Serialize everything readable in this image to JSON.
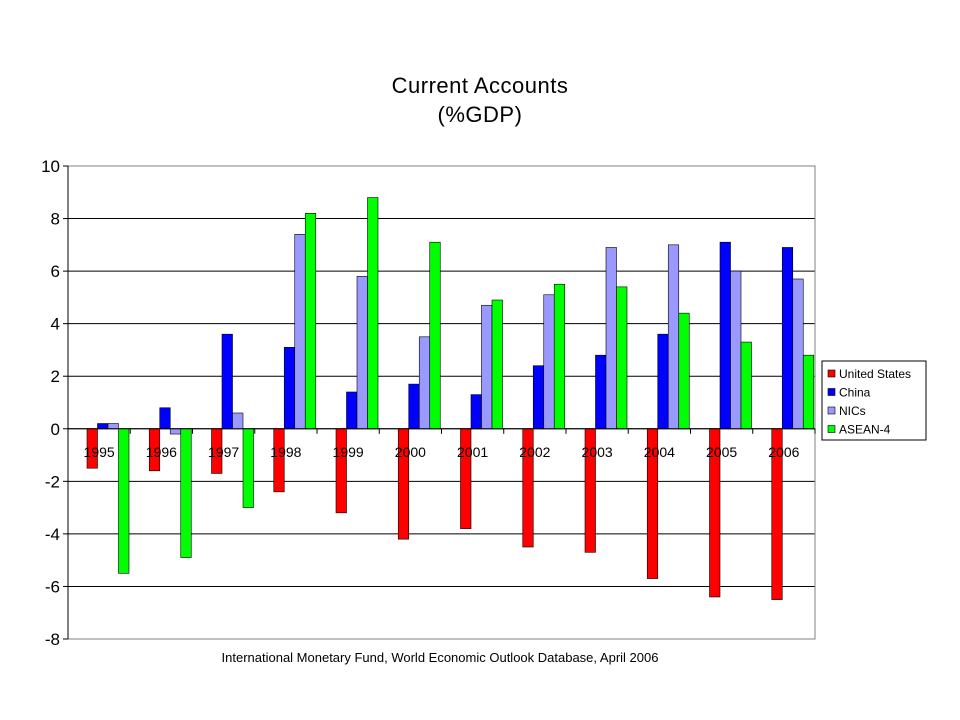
{
  "chart_data": {
    "type": "bar",
    "title": [
      "Current Accounts",
      "(%GDP)"
    ],
    "categories": [
      "1995",
      "1996",
      "1997",
      "1998",
      "1999",
      "2000",
      "2001",
      "2002",
      "2003",
      "2004",
      "2005",
      "2006"
    ],
    "series": [
      {
        "name": "United States",
        "color": "#ff0000",
        "values": [
          -1.5,
          -1.6,
          -1.7,
          -2.4,
          -3.2,
          -4.2,
          -3.8,
          -4.5,
          -4.7,
          -5.7,
          -6.4,
          -6.5
        ]
      },
      {
        "name": "China",
        "color": "#0000ff",
        "values": [
          0.2,
          0.8,
          3.6,
          3.1,
          1.4,
          1.7,
          1.3,
          2.4,
          2.8,
          3.6,
          7.1,
          6.9
        ]
      },
      {
        "name": "NICs",
        "color": "#9999ff",
        "values": [
          0.2,
          -0.2,
          0.6,
          7.4,
          5.8,
          3.5,
          4.7,
          5.1,
          6.9,
          7.0,
          6.0,
          5.7
        ]
      },
      {
        "name": "ASEAN-4",
        "color": "#00ff00",
        "values": [
          -5.5,
          -4.9,
          -3.0,
          8.2,
          8.8,
          7.1,
          4.9,
          5.5,
          5.4,
          4.4,
          3.3,
          2.8
        ]
      }
    ],
    "ylim": [
      -8,
      10
    ],
    "yticks": [
      "-8",
      "-6",
      "-4",
      "-2",
      "0",
      "2",
      "4",
      "6",
      "8",
      "10"
    ],
    "grid": true,
    "legend_position": "right",
    "source": "International Monetary Fund, World Economic Outlook Database, April 2006"
  }
}
